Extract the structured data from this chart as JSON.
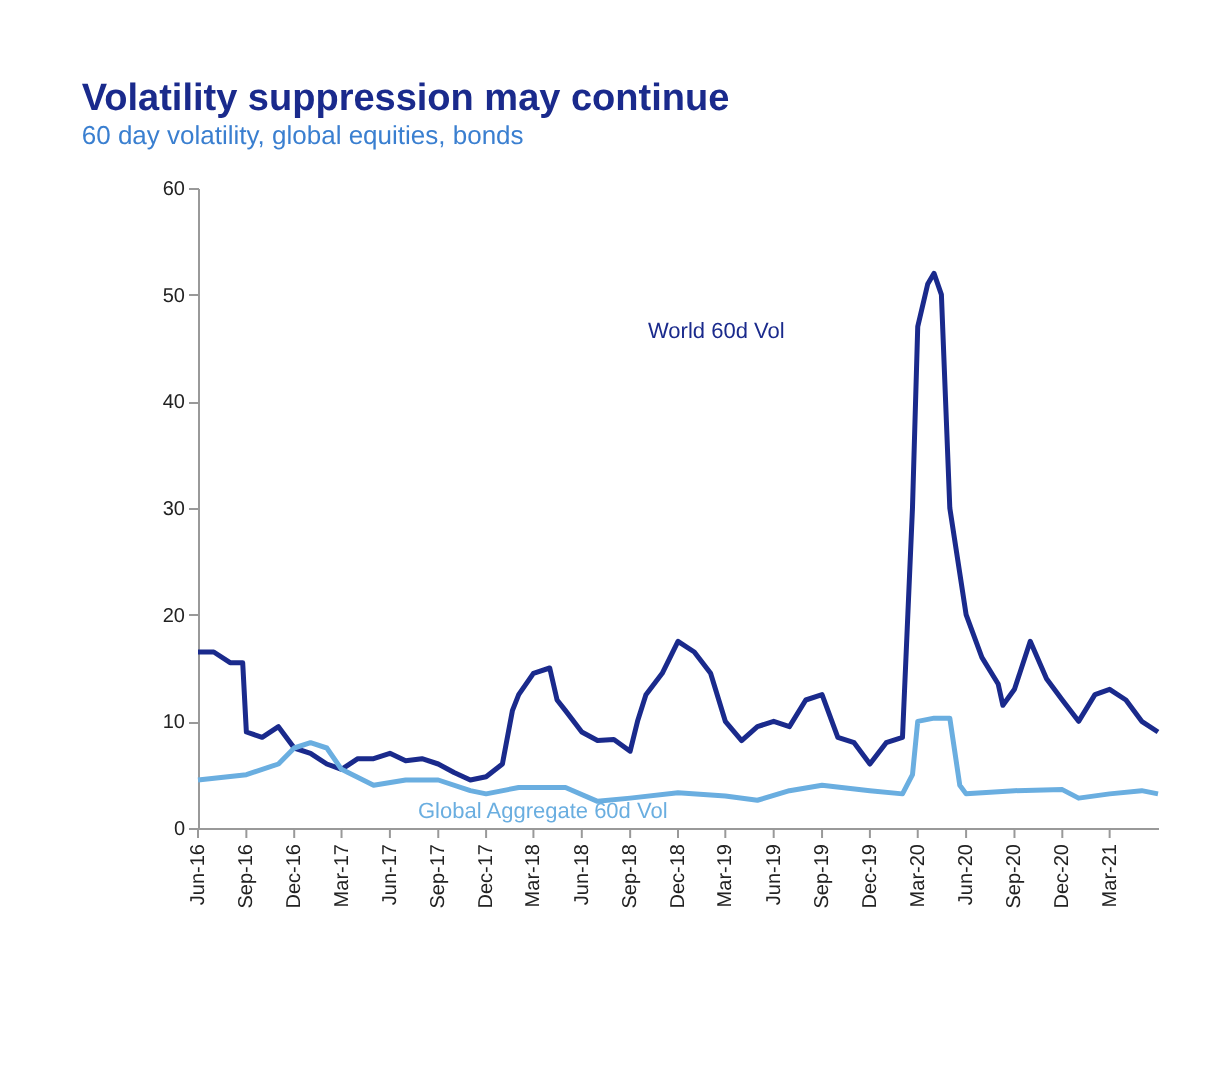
{
  "chart_data": {
    "type": "line",
    "title": "Volatility suppression may continue",
    "subtitle": "60 day volatility, global equities, bonds",
    "ylim": [
      0,
      60
    ],
    "yticks": [
      0,
      10,
      20,
      30,
      40,
      50,
      60
    ],
    "xlim": [
      "2016-06",
      "2021-06"
    ],
    "xticks": [
      {
        "value": "2016-06",
        "label": "Jun-16"
      },
      {
        "value": "2016-09",
        "label": "Sep-16"
      },
      {
        "value": "2016-12",
        "label": "Dec-16"
      },
      {
        "value": "2017-03",
        "label": "Mar-17"
      },
      {
        "value": "2017-06",
        "label": "Jun-17"
      },
      {
        "value": "2017-09",
        "label": "Sep-17"
      },
      {
        "value": "2017-12",
        "label": "Dec-17"
      },
      {
        "value": "2018-03",
        "label": "Mar-18"
      },
      {
        "value": "2018-06",
        "label": "Jun-18"
      },
      {
        "value": "2018-09",
        "label": "Sep-18"
      },
      {
        "value": "2018-12",
        "label": "Dec-18"
      },
      {
        "value": "2019-03",
        "label": "Mar-19"
      },
      {
        "value": "2019-06",
        "label": "Jun-19"
      },
      {
        "value": "2019-09",
        "label": "Sep-19"
      },
      {
        "value": "2019-12",
        "label": "Dec-19"
      },
      {
        "value": "2020-03",
        "label": "Mar-20"
      },
      {
        "value": "2020-06",
        "label": "Jun-20"
      },
      {
        "value": "2020-09",
        "label": "Sep-20"
      },
      {
        "value": "2020-12",
        "label": "Dec-20"
      },
      {
        "value": "2021-03",
        "label": "Mar-21"
      }
    ],
    "grid": false,
    "legend": false,
    "marker": "none",
    "line_style": "solid",
    "series": [
      {
        "name": "World 60d Vol",
        "color": "#1a2a8c",
        "x": [
          "2016-06",
          "2016-07",
          "2016-08",
          "2016-08-25",
          "2016-09",
          "2016-10",
          "2016-11",
          "2016-12",
          "2017-01",
          "2017-02",
          "2017-03",
          "2017-04",
          "2017-05",
          "2017-06",
          "2017-07",
          "2017-08",
          "2017-09",
          "2017-10",
          "2017-11",
          "2017-12",
          "2018-01",
          "2018-01-20",
          "2018-02",
          "2018-03",
          "2018-04",
          "2018-04-15",
          "2018-05",
          "2018-06",
          "2018-07",
          "2018-08",
          "2018-09",
          "2018-09-15",
          "2018-10",
          "2018-11",
          "2018-12",
          "2019-01",
          "2019-02",
          "2019-03",
          "2019-04",
          "2019-05",
          "2019-06",
          "2019-07",
          "2019-08",
          "2019-09",
          "2019-10",
          "2019-11",
          "2019-12",
          "2020-01",
          "2020-02",
          "2020-02-20",
          "2020-03",
          "2020-03-20",
          "2020-04",
          "2020-04-15",
          "2020-05",
          "2020-06",
          "2020-07",
          "2020-08",
          "2020-08-10",
          "2020-09",
          "2020-10",
          "2020-11",
          "2020-12",
          "2021-01",
          "2021-02",
          "2021-03",
          "2021-04",
          "2021-05",
          "2021-06"
        ],
        "values": [
          16.5,
          16.5,
          15.5,
          15.5,
          9,
          8.5,
          9.5,
          7.5,
          7,
          6,
          5.5,
          6.5,
          6.5,
          7,
          6.3,
          6.5,
          6,
          5.2,
          4.5,
          4.8,
          6,
          11,
          12.5,
          14.5,
          15,
          12,
          11,
          9,
          8.2,
          8.3,
          7.2,
          10,
          12.5,
          14.5,
          17.5,
          16.5,
          14.5,
          10,
          8.2,
          9.5,
          10,
          9.5,
          12,
          12.5,
          8.5,
          8,
          6,
          8,
          8.5,
          30,
          47,
          51,
          52,
          50,
          30,
          20,
          16,
          13.5,
          11.5,
          13,
          17.5,
          14,
          12,
          10,
          12.5,
          13,
          12,
          10,
          9
        ]
      },
      {
        "name": "Global Aggregate 60d Vol",
        "color": "#6aaee0",
        "x": [
          "2016-06",
          "2016-09",
          "2016-11",
          "2016-12",
          "2017-01",
          "2017-02",
          "2017-03",
          "2017-05",
          "2017-07",
          "2017-09",
          "2017-11",
          "2017-12",
          "2018-02",
          "2018-05",
          "2018-07",
          "2018-09",
          "2018-12",
          "2019-03",
          "2019-05",
          "2019-07",
          "2019-09",
          "2019-12",
          "2020-02",
          "2020-02-20",
          "2020-03",
          "2020-04",
          "2020-05",
          "2020-05-20",
          "2020-06",
          "2020-09",
          "2020-12",
          "2021-01",
          "2021-03",
          "2021-05",
          "2021-06"
        ],
        "values": [
          4.5,
          5,
          6,
          7.5,
          8,
          7.5,
          5.5,
          4,
          4.5,
          4.5,
          3.5,
          3.2,
          3.8,
          3.8,
          2.5,
          2.8,
          3.3,
          3,
          2.6,
          3.5,
          4,
          3.5,
          3.2,
          5,
          10,
          10.3,
          10.3,
          4,
          3.2,
          3.5,
          3.6,
          2.8,
          3.2,
          3.5,
          3.2
        ]
      }
    ]
  }
}
